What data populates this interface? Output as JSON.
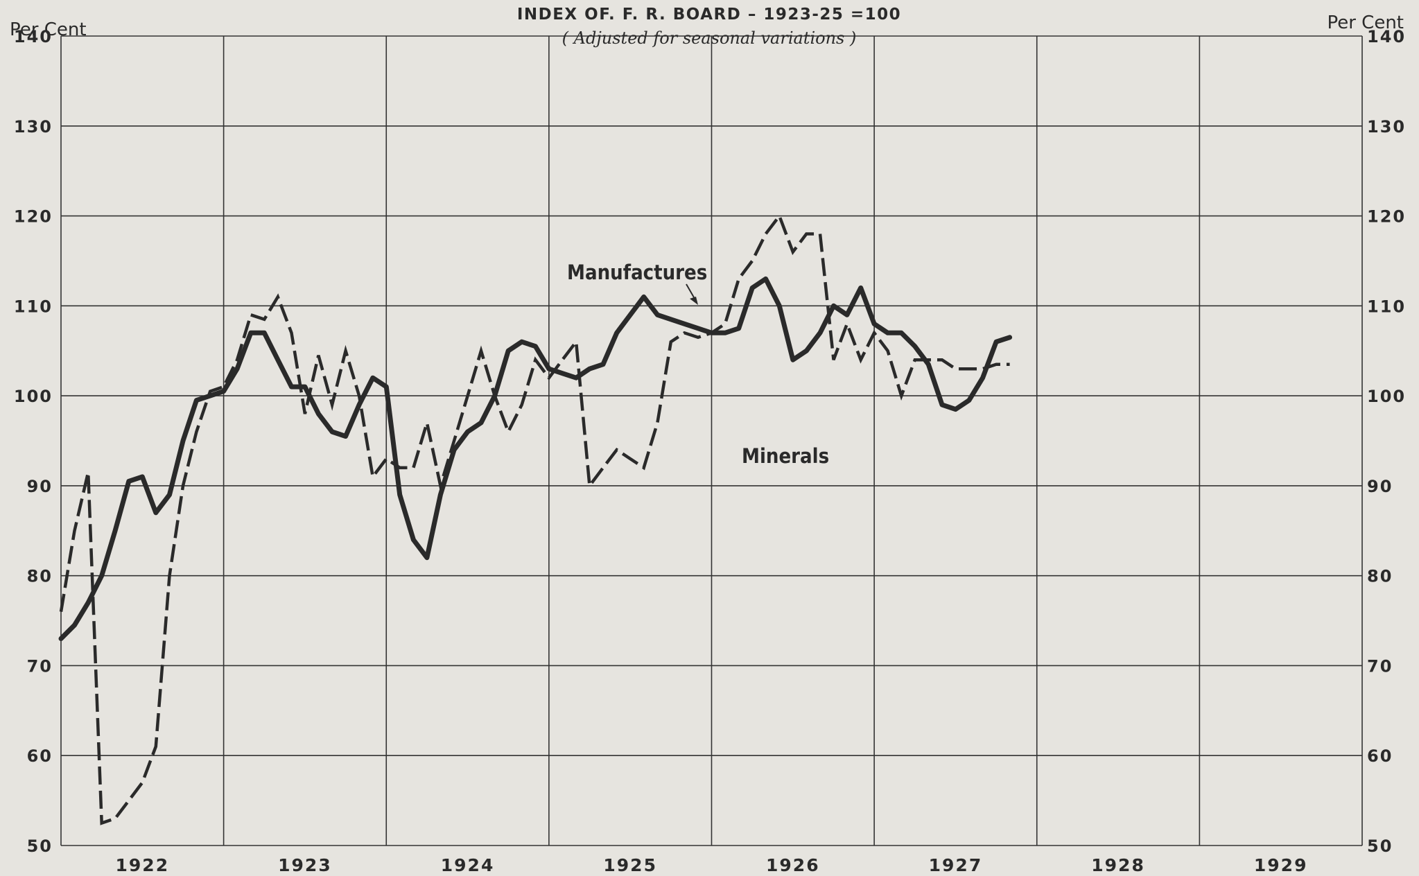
{
  "chart_data": {
    "type": "line",
    "title": "INDEX OF. F. R. BOARD – 1923-25 =100",
    "subtitle": "( Adjusted for seasonal variations )",
    "ylabel_left": "Per Cent",
    "ylabel_right": "Per Cent",
    "ylim": [
      50,
      140
    ],
    "y_ticks": [
      50,
      60,
      70,
      80,
      90,
      100,
      110,
      120,
      130,
      140
    ],
    "x_axis": {
      "start": 1922,
      "end": 1930,
      "tick_labels": [
        "1922",
        "1923",
        "1924",
        "1925",
        "1926",
        "1927",
        "1928",
        "1929"
      ]
    },
    "grid": true,
    "legend": "none; series labeled inline",
    "annotations": [
      {
        "text": "Manufactures",
        "series": "Manufactures"
      },
      {
        "text": "Minerals",
        "series": "Minerals"
      }
    ],
    "series": [
      {
        "name": "Manufactures",
        "style": "solid-heavy",
        "x": [
          1922.0,
          1922.083,
          1922.167,
          1922.25,
          1922.333,
          1922.417,
          1922.5,
          1922.583,
          1922.667,
          1922.75,
          1922.833,
          1922.917,
          1923.0,
          1923.083,
          1923.167,
          1923.25,
          1923.333,
          1923.417,
          1923.5,
          1923.583,
          1923.667,
          1923.75,
          1923.833,
          1923.917,
          1924.0,
          1924.083,
          1924.167,
          1924.25,
          1924.333,
          1924.417,
          1924.5,
          1924.583,
          1924.667,
          1924.75,
          1924.833,
          1924.917,
          1925.0,
          1925.083,
          1925.167,
          1925.25,
          1925.333,
          1925.417,
          1925.5,
          1925.583,
          1925.667,
          1925.75,
          1925.833,
          1925.917,
          1926.0,
          1926.083,
          1926.167,
          1926.25,
          1926.333,
          1926.417,
          1926.5,
          1926.583,
          1926.667,
          1926.75,
          1926.833,
          1926.917,
          1927.0,
          1927.083,
          1927.167,
          1927.25,
          1927.333,
          1927.417,
          1927.5,
          1927.583,
          1927.667,
          1927.75,
          1927.833
        ],
        "values": [
          73,
          74.5,
          77,
          80,
          85,
          90.5,
          91,
          87,
          89,
          95,
          99.5,
          100,
          100.5,
          103,
          107,
          107,
          104,
          101,
          101,
          98,
          96,
          95.5,
          99,
          102,
          101,
          89,
          84,
          82,
          89,
          94,
          96,
          97,
          100,
          105,
          106,
          105.5,
          103,
          102.5,
          102,
          103,
          103.5,
          107,
          109,
          111,
          109,
          108.5,
          108,
          107.5,
          107,
          107,
          107.5,
          112,
          113,
          110,
          104,
          105,
          107,
          110,
          109,
          112,
          108,
          107,
          107,
          105.5,
          103.5,
          99,
          98.5,
          99.5,
          102,
          106,
          106.5
        ]
      },
      {
        "name": "Minerals",
        "style": "dashed",
        "x": [
          1922.0,
          1922.083,
          1922.167,
          1922.25,
          1922.333,
          1922.417,
          1922.5,
          1922.583,
          1922.667,
          1922.75,
          1922.833,
          1922.917,
          1923.0,
          1923.083,
          1923.167,
          1923.25,
          1923.333,
          1923.417,
          1923.5,
          1923.583,
          1923.667,
          1923.75,
          1923.833,
          1923.917,
          1924.0,
          1924.083,
          1924.167,
          1924.25,
          1924.333,
          1924.417,
          1924.5,
          1924.583,
          1924.667,
          1924.75,
          1924.833,
          1924.917,
          1925.0,
          1925.083,
          1925.167,
          1925.25,
          1925.333,
          1925.417,
          1925.5,
          1925.583,
          1925.667,
          1925.75,
          1925.833,
          1925.917,
          1926.0,
          1926.083,
          1926.167,
          1926.25,
          1926.333,
          1926.417,
          1926.5,
          1926.583,
          1926.667,
          1926.75,
          1926.833,
          1926.917,
          1927.0,
          1927.083,
          1927.167,
          1927.25,
          1927.333,
          1927.417,
          1927.5,
          1927.583,
          1927.667,
          1927.75,
          1927.833
        ],
        "values": [
          76,
          85,
          91.5,
          52.5,
          53,
          55,
          57,
          61,
          80,
          90,
          96,
          100.5,
          101,
          104,
          109,
          108.5,
          111,
          107,
          98,
          104.5,
          99,
          105,
          100,
          91,
          93,
          92,
          92,
          97,
          90,
          95,
          100,
          105,
          100,
          96,
          99,
          104,
          102,
          104,
          106,
          90,
          92,
          94,
          93,
          92,
          97,
          106,
          107,
          106.5,
          107,
          108,
          113,
          115,
          118,
          120,
          116,
          118,
          118,
          104,
          108,
          104,
          107,
          105,
          100,
          104,
          104,
          104,
          103,
          103,
          103,
          103.5,
          103.5
        ]
      }
    ]
  }
}
